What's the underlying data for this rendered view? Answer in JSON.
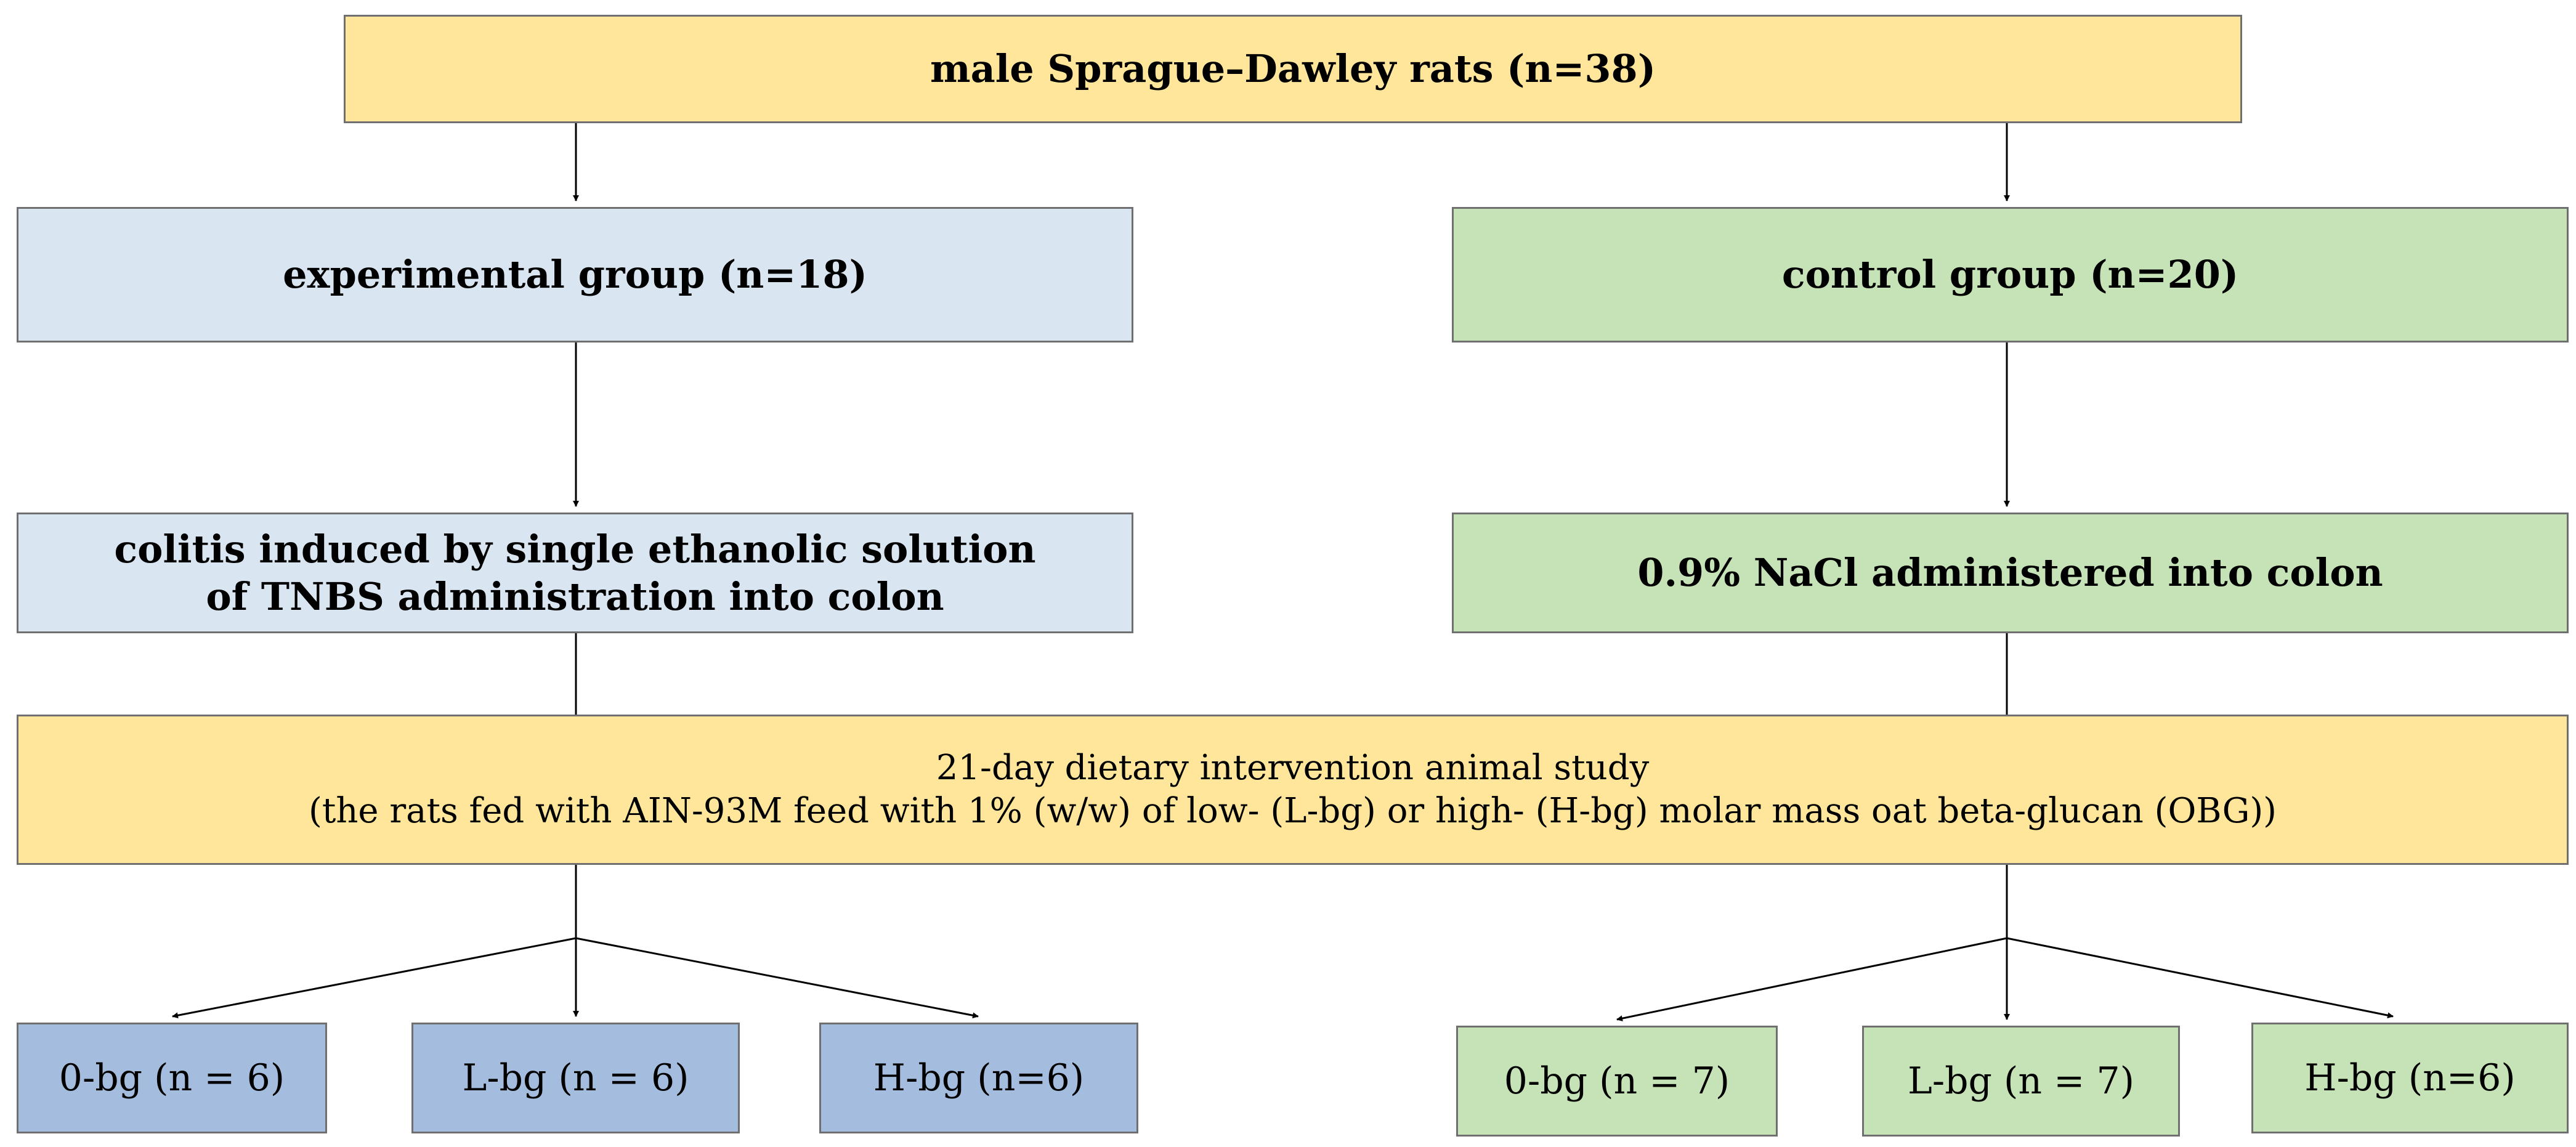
{
  "top_box": {
    "label": "male Sprague–Dawley rats (n=38)"
  },
  "experimental_group": {
    "label": "experimental group (n=18)"
  },
  "control_group": {
    "label": "control group (n=20)"
  },
  "experimental_treatment": {
    "line1": "colitis induced by single ethanolic solution",
    "line2": "of TNBS administration into colon"
  },
  "control_treatment": {
    "label": "0.9% NaCl administered into colon"
  },
  "intervention": {
    "line1": "21-day dietary intervention animal study",
    "line2": "(the rats fed with AIN-93M feed with 1% (w/w) of low- (L-bg) or high-  (H-bg) molar mass oat beta-glucan (OBG))"
  },
  "experimental_subgroups": [
    {
      "label": "0-bg (n = 6)"
    },
    {
      "label": "L-bg (n = 6)"
    },
    {
      "label": "H-bg (n=6)"
    }
  ],
  "control_subgroups": [
    {
      "label": "0-bg (n = 7)"
    },
    {
      "label": "L-bg (n = 7)"
    },
    {
      "label": "H-bg (n=6)"
    }
  ],
  "colors": {
    "yellow_box": "#ffe69a",
    "light_blue_box": "#dae5f2",
    "green_box": "#c5e3b6",
    "blue_box": "#a4bcdd",
    "border": "#6f6f6f"
  }
}
